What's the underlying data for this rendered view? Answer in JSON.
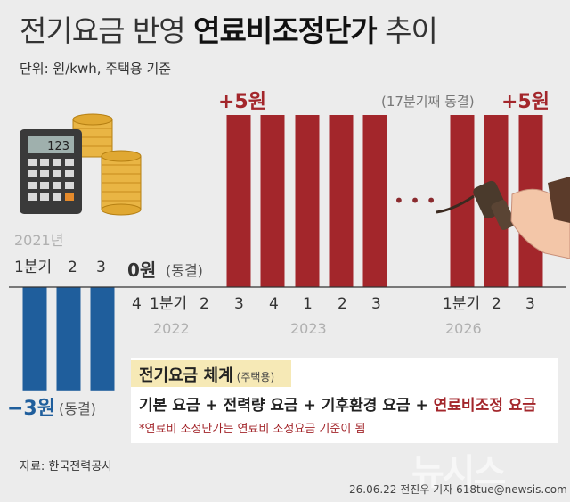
{
  "title": {
    "part1": "전기요금 반영 ",
    "part2": "연료비조정단가",
    "part3": " 추이"
  },
  "unit": "단위: 원/kwh, 주택용 기준",
  "chart_data": {
    "type": "bar",
    "categories": [
      "2021 1분기",
      "2021 2",
      "2021 3",
      "2021 4",
      "2022 1분기",
      "2022 2",
      "2022 3",
      "2022 4",
      "2023 1",
      "2023 2",
      "2023 3",
      "2026 1분기",
      "2026 2",
      "2026 3"
    ],
    "values": [
      -3,
      -3,
      -3,
      0,
      0,
      0,
      5,
      5,
      5,
      5,
      5,
      5,
      5,
      5
    ],
    "colors": {
      "negative": "#1f5e9c",
      "positive": "#a3262b"
    },
    "annotations": {
      "negative": {
        "value": "−3원",
        "note": "(동결)"
      },
      "zero": {
        "value": "0원",
        "note": "(동결)"
      },
      "positive_left": "+5원",
      "positive_right": "+5원",
      "frozen_note": "(17분기째 동결)",
      "ellipsis": "• • •"
    },
    "year_labels": {
      "y2021": "2021년",
      "y2022": "2022",
      "y2023": "2023",
      "y2026": "2026"
    },
    "tick_labels": {
      "y2021": [
        "1분기",
        "2",
        "3"
      ],
      "y2022": [
        "4",
        "1분기",
        "2"
      ],
      "y2023": [
        "3",
        "4",
        "1",
        "2",
        "3"
      ],
      "y2026": [
        "1분기",
        "2",
        "3"
      ]
    }
  },
  "legend": {
    "title": "전기요금 체계",
    "title_sub": "(주택용)",
    "formula_parts": [
      "기본 요금",
      " + ",
      "전력량 요금",
      " + ",
      "기후환경 요금",
      " + "
    ],
    "formula_highlight": "연료비조정 요금",
    "note": "*연료비 조정단가는 연료비 조정요금 기준이 됨"
  },
  "source": "자료: 한국전력공사",
  "credit": "26.06.22 전진우 기자 618tue@newsis.com",
  "watermark": "뉴시스",
  "calculator_display": "123"
}
